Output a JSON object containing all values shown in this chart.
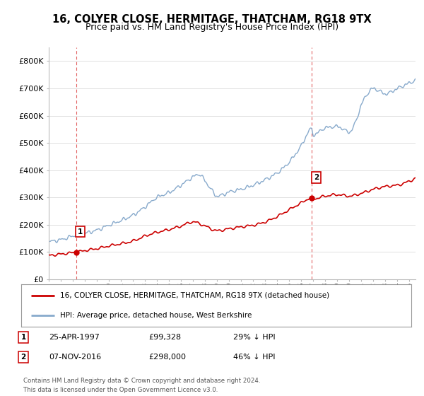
{
  "title": "16, COLYER CLOSE, HERMITAGE, THATCHAM, RG18 9TX",
  "subtitle": "Price paid vs. HM Land Registry's House Price Index (HPI)",
  "ylim": [
    0,
    850000
  ],
  "yticks": [
    0,
    100000,
    200000,
    300000,
    400000,
    500000,
    600000,
    700000,
    800000
  ],
  "ytick_labels": [
    "£0",
    "£100K",
    "£200K",
    "£300K",
    "£400K",
    "£500K",
    "£600K",
    "£700K",
    "£800K"
  ],
  "sale1_date": 1997.32,
  "sale1_price": 99328,
  "sale2_date": 2016.85,
  "sale2_price": 298000,
  "hpi_color": "#88aacc",
  "price_color": "#cc0000",
  "vline_color": "#dd4444",
  "legend_address": "16, COLYER CLOSE, HERMITAGE, THATCHAM, RG18 9TX (detached house)",
  "legend_hpi": "HPI: Average price, detached house, West Berkshire",
  "table_rows": [
    {
      "num": "1",
      "date": "25-APR-1997",
      "price": "£99,328",
      "hpi": "29% ↓ HPI"
    },
    {
      "num": "2",
      "date": "07-NOV-2016",
      "price": "£298,000",
      "hpi": "46% ↓ HPI"
    }
  ],
  "footer": "Contains HM Land Registry data © Crown copyright and database right 2024.\nThis data is licensed under the Open Government Licence v3.0.",
  "bg_color": "#ffffff",
  "grid_color": "#e0e0e0"
}
